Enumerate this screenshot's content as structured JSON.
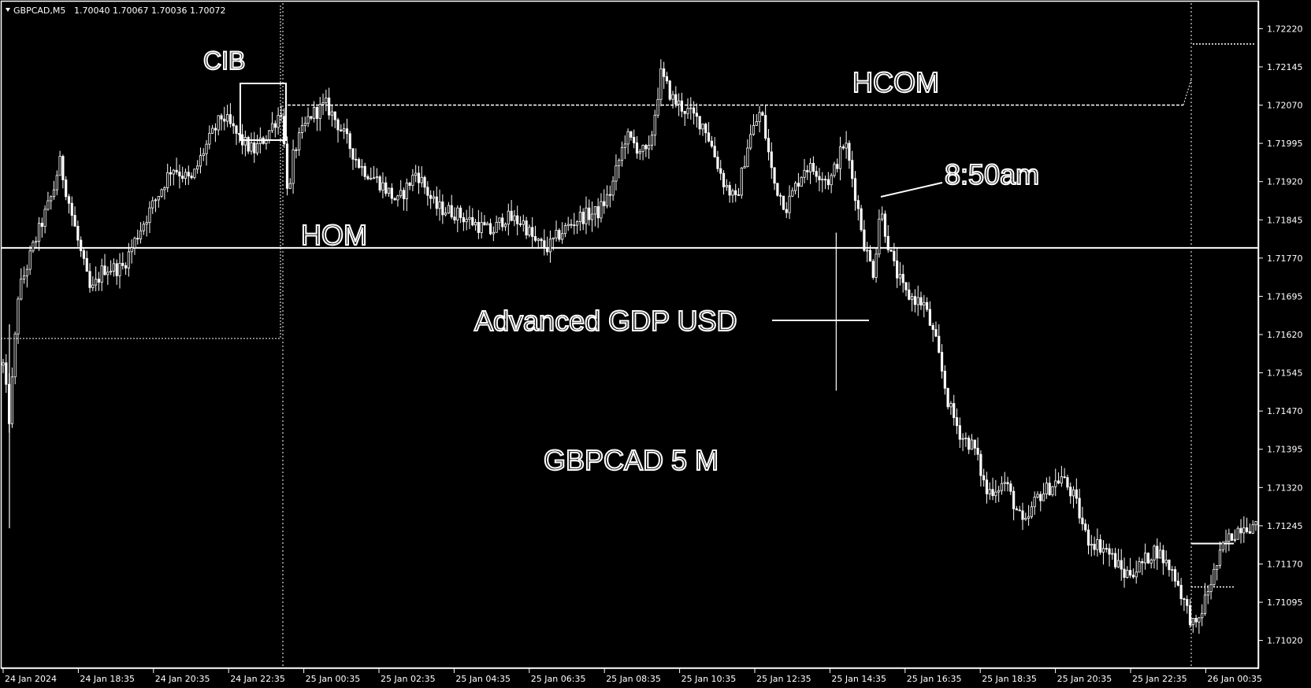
{
  "header": {
    "symbol": "GBPCAD,M5",
    "ohlc": "1.70040 1.70067 1.70036 1.70072"
  },
  "annotations": {
    "cib": "CIB",
    "hcom": "HCOM",
    "hom": "HOM",
    "time_note": "8:50am",
    "news": "Advanced GDP USD",
    "chart_name": "GBPCAD 5 M"
  },
  "colors": {
    "background": "#000000",
    "foreground": "#ffffff"
  },
  "chart_data": {
    "type": "candlestick",
    "title": "GBPCAD 5 M",
    "symbol": "GBPCAD",
    "timeframe": "M5",
    "grid": false,
    "ylim": [
      1.7097,
      1.7227
    ],
    "y_ticks": [
      "1.72220",
      "1.72145",
      "1.72070",
      "1.71995",
      "1.71920",
      "1.71845",
      "1.71770",
      "1.71695",
      "1.71620",
      "1.71545",
      "1.71470",
      "1.71395",
      "1.71320",
      "1.71245",
      "1.71170",
      "1.71095",
      "1.71020"
    ],
    "x_ticks": [
      "24 Jan 2024",
      "24 Jan 18:35",
      "24 Jan 20:35",
      "24 Jan 22:35",
      "25 Jan 00:35",
      "25 Jan 02:35",
      "25 Jan 04:35",
      "25 Jan 06:35",
      "25 Jan 08:35",
      "25 Jan 10:35",
      "25 Jan 12:35",
      "25 Jan 14:35",
      "25 Jan 16:35",
      "25 Jan 18:35",
      "25 Jan 20:35",
      "25 Jan 22:35",
      "26 Jan 00:35"
    ],
    "x_tick_fracs": [
      0,
      0.06,
      0.12,
      0.18,
      0.24,
      0.3,
      0.36,
      0.42,
      0.48,
      0.54,
      0.6,
      0.66,
      0.72,
      0.78,
      0.84,
      0.9,
      0.96
    ],
    "price_path": [
      [
        0.0,
        1.7156
      ],
      [
        0.005,
        1.7145
      ],
      [
        0.012,
        1.717
      ],
      [
        0.025,
        1.718
      ],
      [
        0.04,
        1.719
      ],
      [
        0.045,
        1.7196
      ],
      [
        0.06,
        1.718
      ],
      [
        0.07,
        1.717
      ],
      [
        0.08,
        1.7175
      ],
      [
        0.095,
        1.7175
      ],
      [
        0.11,
        1.7183
      ],
      [
        0.125,
        1.719
      ],
      [
        0.135,
        1.7195
      ],
      [
        0.15,
        1.7192
      ],
      [
        0.16,
        1.7198
      ],
      [
        0.175,
        1.7205
      ],
      [
        0.19,
        1.72
      ],
      [
        0.2,
        1.7198
      ],
      [
        0.21,
        1.7201
      ],
      [
        0.222,
        1.7206
      ],
      [
        0.228,
        1.7188
      ],
      [
        0.232,
        1.7198
      ],
      [
        0.245,
        1.7205
      ],
      [
        0.258,
        1.7207
      ],
      [
        0.268,
        1.7203
      ],
      [
        0.285,
        1.7195
      ],
      [
        0.3,
        1.7192
      ],
      [
        0.315,
        1.7188
      ],
      [
        0.33,
        1.7194
      ],
      [
        0.345,
        1.7187
      ],
      [
        0.36,
        1.7186
      ],
      [
        0.375,
        1.7184
      ],
      [
        0.39,
        1.7182
      ],
      [
        0.4,
        1.7185
      ],
      [
        0.415,
        1.7184
      ],
      [
        0.425,
        1.718
      ],
      [
        0.435,
        1.7179
      ],
      [
        0.445,
        1.7182
      ],
      [
        0.46,
        1.7185
      ],
      [
        0.475,
        1.7186
      ],
      [
        0.485,
        1.719
      ],
      [
        0.497,
        1.7201
      ],
      [
        0.505,
        1.7199
      ],
      [
        0.515,
        1.7197
      ],
      [
        0.525,
        1.7213
      ],
      [
        0.535,
        1.7208
      ],
      [
        0.545,
        1.7206
      ],
      [
        0.56,
        1.7203
      ],
      [
        0.575,
        1.7192
      ],
      [
        0.585,
        1.7188
      ],
      [
        0.595,
        1.72
      ],
      [
        0.605,
        1.7206
      ],
      [
        0.615,
        1.7192
      ],
      [
        0.625,
        1.7187
      ],
      [
        0.64,
        1.7195
      ],
      [
        0.65,
        1.7194
      ],
      [
        0.66,
        1.7192
      ],
      [
        0.672,
        1.72
      ],
      [
        0.68,
        1.719
      ],
      [
        0.688,
        1.7179
      ],
      [
        0.695,
        1.7174
      ],
      [
        0.7,
        1.7187
      ],
      [
        0.71,
        1.7176
      ],
      [
        0.72,
        1.717
      ],
      [
        0.735,
        1.7168
      ],
      [
        0.745,
        1.716
      ],
      [
        0.755,
        1.7148
      ],
      [
        0.765,
        1.7142
      ],
      [
        0.775,
        1.714
      ],
      [
        0.785,
        1.7131
      ],
      [
        0.8,
        1.7133
      ],
      [
        0.815,
        1.7124
      ],
      [
        0.825,
        1.713
      ],
      [
        0.835,
        1.7132
      ],
      [
        0.845,
        1.7134
      ],
      [
        0.855,
        1.713
      ],
      [
        0.865,
        1.7122
      ],
      [
        0.88,
        1.712
      ],
      [
        0.895,
        1.7115
      ],
      [
        0.905,
        1.7116
      ],
      [
        0.92,
        1.712
      ],
      [
        0.935,
        1.7115
      ],
      [
        0.945,
        1.7108
      ],
      [
        0.952,
        1.7104
      ],
      [
        0.962,
        1.7112
      ],
      [
        0.975,
        1.7121
      ],
      [
        0.99,
        1.7125
      ],
      [
        1.0,
        1.7124
      ]
    ],
    "levels": [
      {
        "label": "HCOM",
        "value": 1.7207,
        "style": "dashed"
      },
      {
        "label": "HOM",
        "value": 1.7179,
        "style": "solid"
      },
      {
        "label": "",
        "value": 1.71625,
        "style": "dotted"
      },
      {
        "label": "",
        "value": 1.7219,
        "style": "dotted"
      },
      {
        "label": "",
        "value": 1.7121,
        "style": "solid"
      },
      {
        "label": "",
        "value": 1.71125,
        "style": "dotted"
      }
    ]
  }
}
